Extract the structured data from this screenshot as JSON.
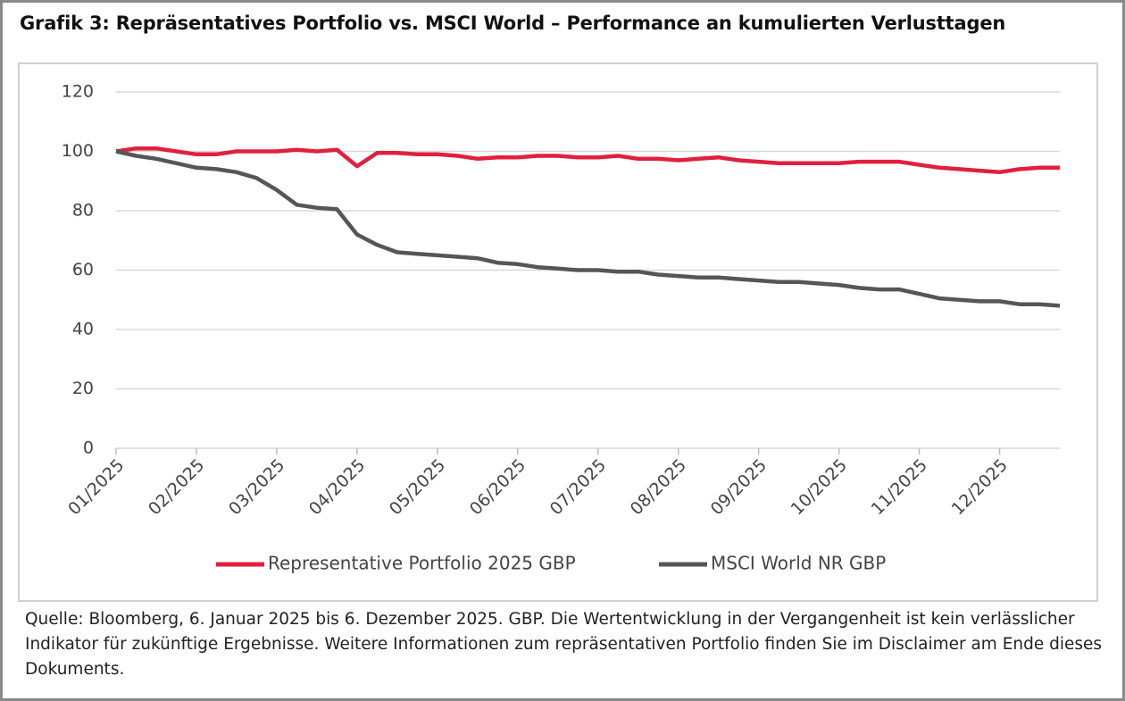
{
  "chart_data": {
    "type": "line",
    "title": "Grafik 3: Repräsentatives Portfolio vs. MSCI World – Performance an kumulierten Verlusttagen",
    "source": "Quelle: Bloomberg, 6. Januar 2025 bis 6. Dezember 2025. GBP. Die Wertentwicklung in der Vergangenheit ist kein verlässlicher Indikator für zukünftige Ergebnisse. Weitere Informationen zum repräsentativen Portfolio finden Sie im Disclaimer am Ende dieses Dokuments.",
    "categories": [
      "01/2025",
      null,
      null,
      null,
      "02/2025",
      null,
      null,
      null,
      "03/2025",
      null,
      null,
      null,
      "04/2025",
      null,
      null,
      null,
      "05/2025",
      null,
      null,
      null,
      "06/2025",
      null,
      null,
      null,
      "07/2025",
      null,
      null,
      null,
      "08/2025",
      null,
      null,
      null,
      "09/2025",
      null,
      null,
      null,
      "10/2025",
      null,
      null,
      null,
      "11/2025",
      null,
      null,
      null,
      "12/2025",
      null,
      null,
      null
    ],
    "series": [
      {
        "name": "Representative Portfolio 2025 GBP",
        "color": "#e0203c",
        "values": [
          100,
          101,
          101,
          100,
          99,
          99,
          100,
          100,
          100,
          100.5,
          100,
          100.5,
          95,
          99.5,
          99.5,
          99,
          99,
          98.5,
          97.5,
          98,
          98,
          98.5,
          98.5,
          98,
          98,
          98.5,
          97.5,
          97.5,
          97,
          97.5,
          98,
          97,
          96.5,
          96,
          96,
          96,
          96,
          96.5,
          96.5,
          96.5,
          95.5,
          94.5,
          94,
          93.5,
          93,
          94,
          94.5,
          94.5
        ]
      },
      {
        "name": "MSCI World NR GBP",
        "color": "#54565a",
        "values": [
          100,
          98.5,
          97.5,
          96,
          94.5,
          94,
          93,
          91,
          87,
          82,
          81,
          80.5,
          72,
          68.5,
          66,
          65.5,
          65,
          64.5,
          64,
          62.5,
          62,
          61,
          60.5,
          60,
          60,
          59.5,
          59.5,
          58.5,
          58,
          57.5,
          57.5,
          57,
          56.5,
          56,
          56,
          55.5,
          55,
          54,
          53.5,
          53.5,
          52,
          50.5,
          50,
          49.5,
          49.5,
          48.5,
          48.5,
          48
        ]
      }
    ],
    "ylim": [
      0,
      120
    ],
    "yticks": [
      0,
      20,
      40,
      60,
      80,
      100,
      120
    ],
    "grid": true,
    "legend": "bottom"
  }
}
